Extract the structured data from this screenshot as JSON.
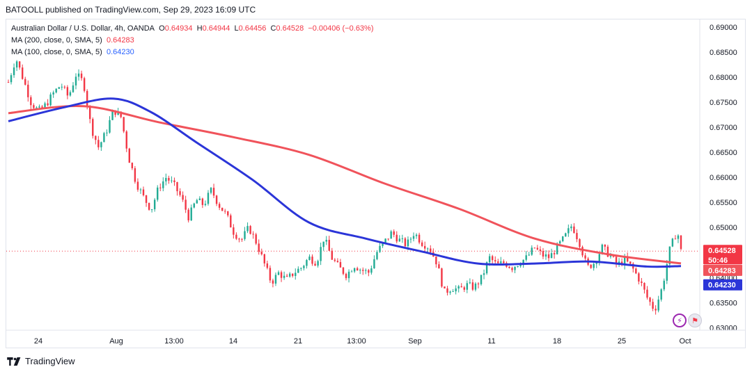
{
  "header": {
    "published_by": "BATOOLL published on TradingView.com, Sep 29, 2023 16:09 UTC"
  },
  "legend": {
    "symbol": "Australian Dollar / U.S. Dollar, 4h, OANDA",
    "o_key": "O",
    "o_val": "0.64934",
    "h_key": "H",
    "h_val": "0.64944",
    "l_key": "L",
    "l_val": "0.64456",
    "c_key": "C",
    "c_val": "0.64528",
    "change": "−0.00406 (−0.63%)",
    "ma200_label": "MA (200, close, 0, SMA, 5)",
    "ma200_val": "0.64283",
    "ma100_label": "MA (100, close, 0, SMA, 5)",
    "ma100_val": "0.64230"
  },
  "footer": {
    "brand": "TradingView"
  },
  "icons": {
    "flash": "flash-icon",
    "flag": "us-flag-icon",
    "logo": "tradingview-logo-icon"
  },
  "colors": {
    "up": "#22ab94",
    "down": "#f23645",
    "ma200": "#f0535b",
    "ma100": "#2b35d8"
  },
  "chart_data": {
    "type": "candlestick",
    "ylim": [
      0.6295,
      0.6915
    ],
    "price_ticks": [
      "0.69000",
      "0.68500",
      "0.68000",
      "0.67500",
      "0.67000",
      "0.66500",
      "0.66000",
      "0.65500",
      "0.65000",
      "0.64500",
      "0.64000",
      "0.63500",
      "0.63000"
    ],
    "x_ticks": [
      "24",
      "Aug",
      "13:00",
      "14",
      "21",
      "13:00",
      "Sep",
      "11",
      "18",
      "25",
      "Oct"
    ],
    "last_price": "0.64528",
    "countdown": "50:46",
    "ma200_value": "0.64283",
    "ma100_value": "0.64230",
    "close_path": [
      [
        0,
        0.679
      ],
      [
        2,
        0.6838
      ],
      [
        4,
        0.6795
      ],
      [
        6,
        0.675
      ],
      [
        8,
        0.6732
      ],
      [
        10,
        0.6745
      ],
      [
        12,
        0.6768
      ],
      [
        14,
        0.6785
      ],
      [
        16,
        0.676
      ],
      [
        18,
        0.6805
      ],
      [
        20,
        0.679
      ],
      [
        22,
        0.67
      ],
      [
        24,
        0.666
      ],
      [
        26,
        0.669
      ],
      [
        28,
        0.6735
      ],
      [
        30,
        0.672
      ],
      [
        32,
        0.664
      ],
      [
        34,
        0.659
      ],
      [
        36,
        0.656
      ],
      [
        38,
        0.6535
      ],
      [
        40,
        0.658
      ],
      [
        42,
        0.66
      ],
      [
        44,
        0.6585
      ],
      [
        46,
        0.656
      ],
      [
        48,
        0.652
      ],
      [
        50,
        0.6555
      ],
      [
        52,
        0.6545
      ],
      [
        54,
        0.6575
      ],
      [
        56,
        0.6545
      ],
      [
        58,
        0.6525
      ],
      [
        60,
        0.649
      ],
      [
        62,
        0.6475
      ],
      [
        64,
        0.65
      ],
      [
        66,
        0.647
      ],
      [
        68,
        0.643
      ],
      [
        70,
        0.639
      ],
      [
        72,
        0.641
      ],
      [
        74,
        0.6395
      ],
      [
        76,
        0.641
      ],
      [
        78,
        0.642
      ],
      [
        80,
        0.644
      ],
      [
        82,
        0.643
      ],
      [
        84,
        0.648
      ],
      [
        86,
        0.644
      ],
      [
        88,
        0.642
      ],
      [
        90,
        0.6405
      ],
      [
        92,
        0.6425
      ],
      [
        94,
        0.6415
      ],
      [
        96,
        0.641
      ],
      [
        98,
        0.645
      ],
      [
        100,
        0.647
      ],
      [
        102,
        0.649
      ],
      [
        104,
        0.6475
      ],
      [
        106,
        0.6465
      ],
      [
        108,
        0.649
      ],
      [
        110,
        0.647
      ],
      [
        112,
        0.646
      ],
      [
        114,
        0.643
      ],
      [
        116,
        0.637
      ],
      [
        118,
        0.638
      ],
      [
        120,
        0.6375
      ],
      [
        122,
        0.6385
      ],
      [
        124,
        0.638
      ],
      [
        126,
        0.64
      ],
      [
        128,
        0.644
      ],
      [
        130,
        0.6425
      ],
      [
        132,
        0.643
      ],
      [
        134,
        0.642
      ],
      [
        136,
        0.643
      ],
      [
        138,
        0.644
      ],
      [
        140,
        0.646
      ],
      [
        142,
        0.6445
      ],
      [
        144,
        0.644
      ],
      [
        146,
        0.646
      ],
      [
        148,
        0.648
      ],
      [
        150,
        0.6505
      ],
      [
        152,
        0.647
      ],
      [
        154,
        0.642
      ],
      [
        156,
        0.643
      ],
      [
        158,
        0.646
      ],
      [
        160,
        0.6445
      ],
      [
        162,
        0.6425
      ],
      [
        164,
        0.6435
      ],
      [
        166,
        0.642
      ],
      [
        168,
        0.6395
      ],
      [
        170,
        0.636
      ],
      [
        172,
        0.6335
      ],
      [
        174,
        0.638
      ],
      [
        176,
        0.6455
      ],
      [
        178,
        0.6495
      ],
      [
        179,
        0.6453
      ]
    ],
    "ma200_path": [
      [
        0,
        0.6728
      ],
      [
        20,
        0.6742
      ],
      [
        40,
        0.671
      ],
      [
        60,
        0.668
      ],
      [
        80,
        0.6645
      ],
      [
        100,
        0.6588
      ],
      [
        120,
        0.6537
      ],
      [
        140,
        0.6478
      ],
      [
        160,
        0.6446
      ],
      [
        179,
        0.64283
      ]
    ],
    "ma100_path": [
      [
        0,
        0.6712
      ],
      [
        15,
        0.674
      ],
      [
        28,
        0.6757
      ],
      [
        38,
        0.673
      ],
      [
        50,
        0.667
      ],
      [
        65,
        0.6595
      ],
      [
        80,
        0.651
      ],
      [
        95,
        0.6478
      ],
      [
        110,
        0.6452
      ],
      [
        125,
        0.6428
      ],
      [
        140,
        0.6428
      ],
      [
        155,
        0.6432
      ],
      [
        170,
        0.6422
      ],
      [
        179,
        0.6423
      ]
    ]
  }
}
